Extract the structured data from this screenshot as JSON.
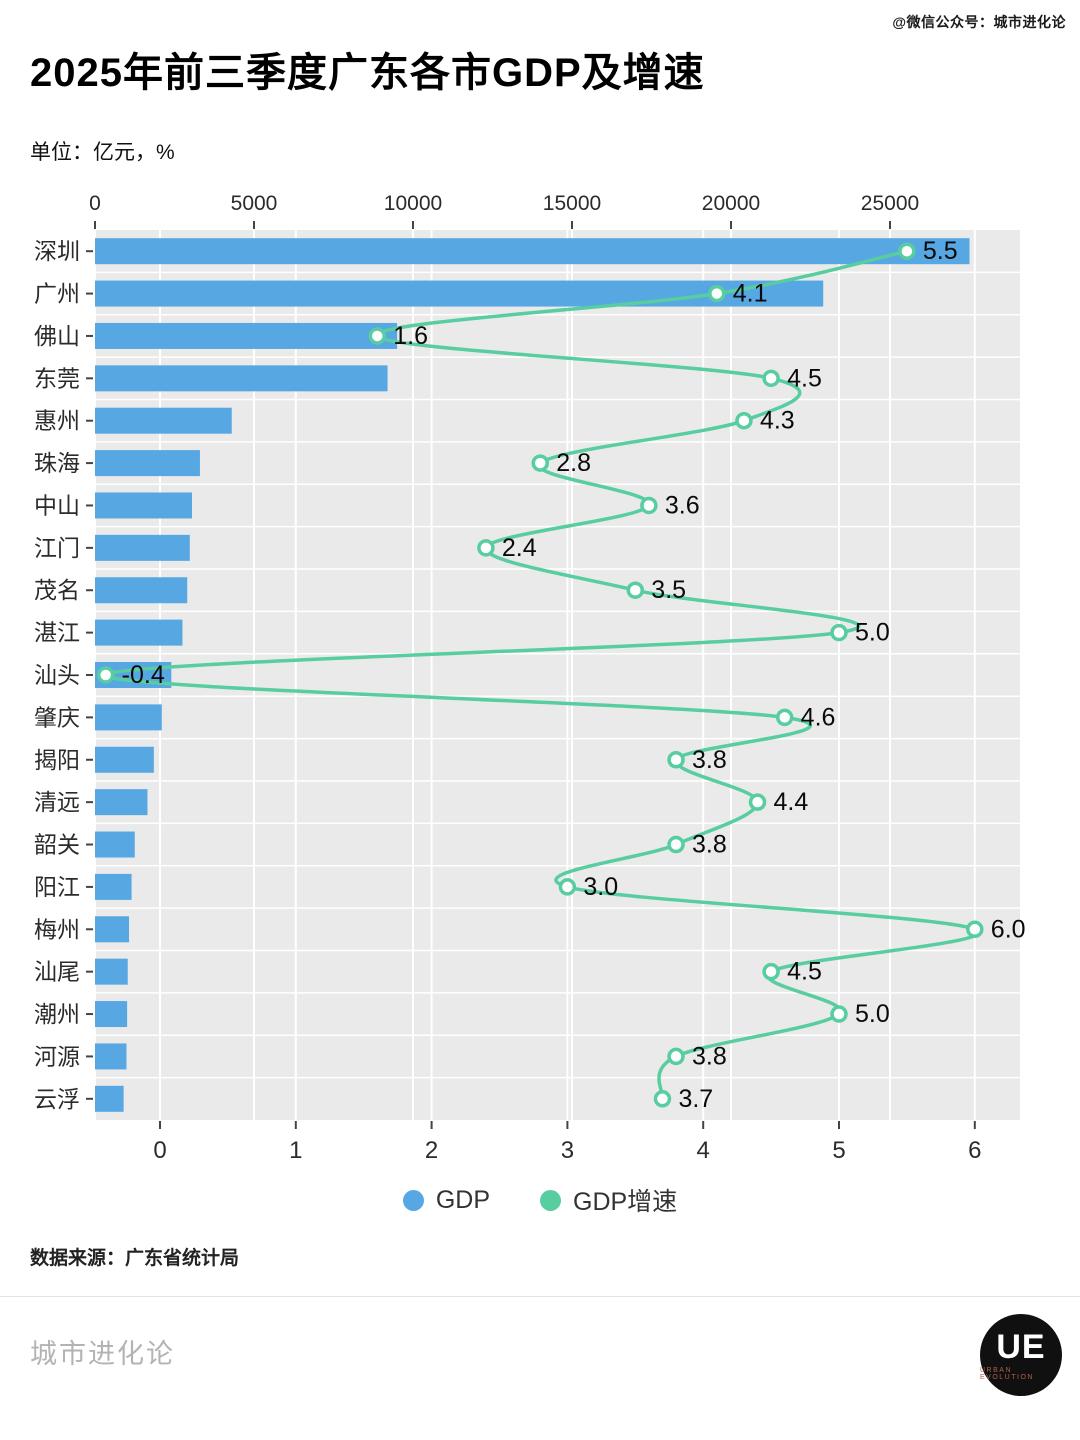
{
  "page": {
    "watermark_top": "@微信公众号：城市进化论",
    "title": "2025年前三季度广东各市GDP及增速",
    "unit_label": "单位：亿元，%",
    "source": "数据来源：广东省统计局",
    "footer_brand": "城市进化论",
    "logo_text": "UE",
    "logo_sub": "URBAN EVOLUTION"
  },
  "legend": {
    "gdp": "GDP",
    "growth": "GDP增速"
  },
  "colors": {
    "bar": "#57A7E3",
    "line": "#57CDA0",
    "plot_bg": "#EAEAEA",
    "grid": "#FFFFFF",
    "axis_text": "#2b2b2b",
    "value_text": "#0a0a0a",
    "tick": "#444444"
  },
  "chart_data": {
    "type": "bar",
    "orientation": "horizontal",
    "title": "2025年前三季度广东各市GDP及增速",
    "unit": "亿元，%",
    "grid": true,
    "legend_position": "bottom",
    "categories": [
      "深圳",
      "广州",
      "佛山",
      "东莞",
      "惠州",
      "珠海",
      "中山",
      "江门",
      "茂名",
      "湛江",
      "汕头",
      "肇庆",
      "揭阳",
      "清远",
      "韶关",
      "阳江",
      "梅州",
      "汕尾",
      "潮州",
      "河源",
      "云浮"
    ],
    "series": [
      {
        "name": "GDP",
        "type": "bar",
        "axis": "top",
        "values": [
          27500,
          22900,
          9500,
          9200,
          4300,
          3300,
          3050,
          2980,
          2900,
          2750,
          2400,
          2100,
          1850,
          1650,
          1250,
          1150,
          1070,
          1030,
          1010,
          990,
          900
        ]
      },
      {
        "name": "GDP增速",
        "type": "line",
        "axis": "bottom",
        "values": [
          5.5,
          4.1,
          1.6,
          4.5,
          4.3,
          2.8,
          3.6,
          2.4,
          3.5,
          5.0,
          -0.4,
          4.6,
          3.8,
          4.4,
          3.8,
          3.0,
          6.0,
          4.5,
          5.0,
          3.8,
          3.7
        ]
      }
    ],
    "top_axis": {
      "ticks": [
        0,
        5000,
        10000,
        15000,
        20000,
        25000
      ]
    },
    "bottom_axis": {
      "ticks": [
        0,
        1,
        2,
        3,
        4,
        5,
        6
      ]
    }
  }
}
